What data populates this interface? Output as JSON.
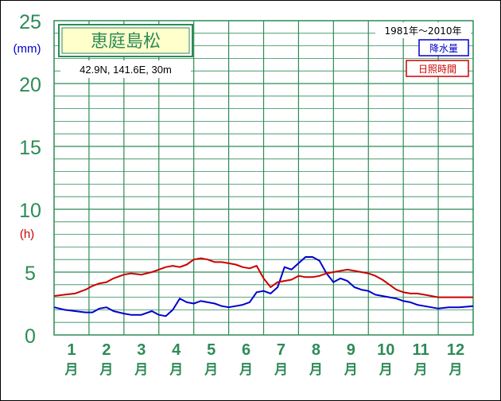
{
  "chart_data": {
    "type": "line",
    "title": "恵庭島松",
    "location": "42.9N, 141.6E, 30m",
    "period": "1981年〜2010年",
    "y_unit_top": "(mm)",
    "y_unit_bottom": "(h)",
    "ylim": [
      0,
      25
    ],
    "y_ticks": [
      "0",
      "5",
      "10",
      "15",
      "20",
      "25"
    ],
    "categories": [
      "1",
      "2",
      "3",
      "4",
      "5",
      "6",
      "7",
      "8",
      "9",
      "10",
      "11",
      "12"
    ],
    "month_suffix": "月",
    "grid": true,
    "legend_position": "top-right",
    "series": [
      {
        "name": "降水量",
        "color": "#0000cc",
        "x": [
          0.0,
          0.3,
          0.6,
          0.9,
          1.1,
          1.3,
          1.5,
          1.7,
          2.0,
          2.2,
          2.5,
          2.8,
          3.0,
          3.2,
          3.4,
          3.6,
          3.8,
          4.0,
          4.2,
          4.4,
          4.6,
          4.8,
          5.0,
          5.2,
          5.4,
          5.6,
          5.8,
          6.0,
          6.2,
          6.4,
          6.6,
          6.8,
          7.0,
          7.2,
          7.4,
          7.6,
          7.8,
          8.0,
          8.2,
          8.4,
          8.6,
          8.8,
          9.0,
          9.2,
          9.4,
          9.6,
          9.8,
          10.0,
          10.2,
          10.4,
          10.6,
          10.8,
          11.0,
          11.3,
          11.6,
          12.0
        ],
        "values": [
          2.2,
          2.0,
          1.9,
          1.8,
          1.8,
          2.1,
          2.2,
          1.9,
          1.7,
          1.6,
          1.6,
          1.9,
          1.6,
          1.5,
          2.0,
          2.9,
          2.6,
          2.5,
          2.7,
          2.6,
          2.5,
          2.3,
          2.2,
          2.3,
          2.4,
          2.6,
          3.4,
          3.5,
          3.3,
          3.8,
          5.4,
          5.2,
          5.7,
          6.2,
          6.2,
          5.9,
          4.9,
          4.2,
          4.5,
          4.3,
          3.8,
          3.6,
          3.5,
          3.2,
          3.1,
          3.0,
          2.9,
          2.7,
          2.6,
          2.4,
          2.3,
          2.2,
          2.1,
          2.2,
          2.2,
          2.3
        ]
      },
      {
        "name": "日照時間",
        "color": "#cc0000",
        "x": [
          0.0,
          0.3,
          0.6,
          0.9,
          1.1,
          1.3,
          1.5,
          1.7,
          2.0,
          2.2,
          2.5,
          2.8,
          3.0,
          3.2,
          3.4,
          3.6,
          3.8,
          4.0,
          4.2,
          4.4,
          4.6,
          4.8,
          5.0,
          5.2,
          5.4,
          5.6,
          5.8,
          6.0,
          6.2,
          6.4,
          6.6,
          6.8,
          7.0,
          7.2,
          7.4,
          7.6,
          7.8,
          8.0,
          8.2,
          8.4,
          8.6,
          8.8,
          9.0,
          9.2,
          9.4,
          9.6,
          9.8,
          10.0,
          10.2,
          10.4,
          10.6,
          10.8,
          11.0,
          11.3,
          11.6,
          12.0
        ],
        "values": [
          3.1,
          3.2,
          3.3,
          3.6,
          3.9,
          4.1,
          4.2,
          4.5,
          4.8,
          4.9,
          4.8,
          5.0,
          5.2,
          5.4,
          5.5,
          5.4,
          5.6,
          6.0,
          6.1,
          6.0,
          5.8,
          5.8,
          5.7,
          5.6,
          5.4,
          5.3,
          5.5,
          4.5,
          3.8,
          4.2,
          4.3,
          4.4,
          4.7,
          4.6,
          4.6,
          4.7,
          4.9,
          5.0,
          5.1,
          5.2,
          5.1,
          5.0,
          4.9,
          4.7,
          4.4,
          4.0,
          3.6,
          3.4,
          3.3,
          3.3,
          3.2,
          3.1,
          3.0,
          3.0,
          3.0,
          3.0
        ]
      }
    ]
  }
}
